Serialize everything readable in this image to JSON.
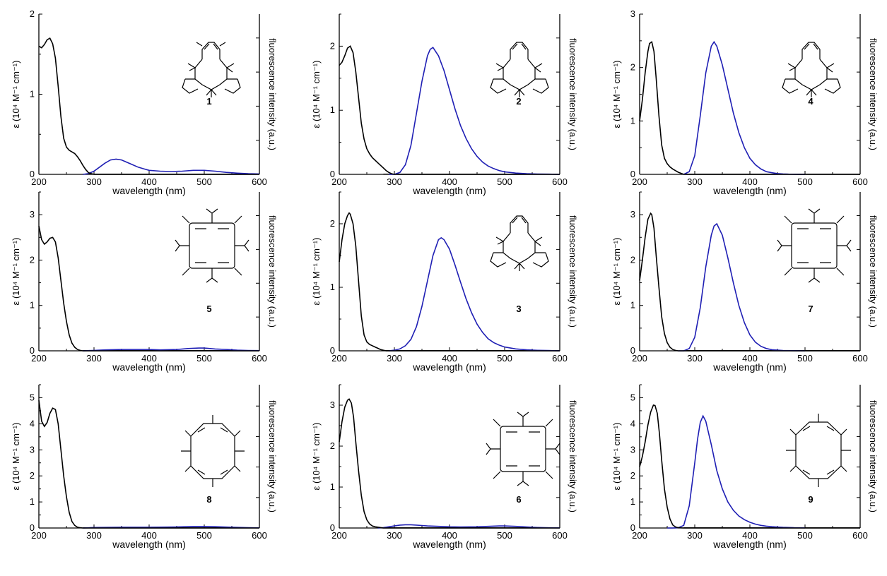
{
  "colors": {
    "absorption": "#000000",
    "fluorescence": "#1f1fb4"
  },
  "chart_data": [
    {
      "type": "line",
      "compound": "1",
      "xlabel": "wavelength (nm)",
      "ylabel": "ε (10⁴ M⁻¹ cm⁻¹)",
      "ylabel_right": "fluorescence intensity (a.u.)",
      "xlim": [
        200,
        600
      ],
      "ylim": [
        0,
        2
      ],
      "xticks": [
        200,
        300,
        400,
        500,
        600
      ],
      "yticks": [
        0,
        1,
        2
      ],
      "abs_x": [
        200,
        205,
        210,
        215,
        220,
        225,
        230,
        235,
        240,
        245,
        250,
        255,
        260,
        265,
        270,
        275,
        280,
        285,
        290,
        295,
        300,
        320,
        340,
        360,
        400,
        450,
        500,
        550,
        600
      ],
      "abs_y": [
        1.6,
        1.58,
        1.62,
        1.68,
        1.7,
        1.63,
        1.45,
        1.1,
        0.72,
        0.45,
        0.34,
        0.3,
        0.28,
        0.26,
        0.22,
        0.17,
        0.11,
        0.06,
        0.02,
        0.01,
        0.0,
        0.0,
        0.0,
        0.0,
        0.0,
        0.0,
        0.0,
        0.0,
        0.0
      ],
      "fl_x": [
        280,
        290,
        300,
        310,
        320,
        330,
        340,
        350,
        360,
        370,
        380,
        390,
        400,
        420,
        440,
        460,
        480,
        490,
        500,
        520,
        540,
        560,
        580,
        600
      ],
      "fl_y": [
        0.0,
        0.01,
        0.04,
        0.09,
        0.14,
        0.18,
        0.19,
        0.18,
        0.15,
        0.12,
        0.09,
        0.07,
        0.05,
        0.04,
        0.035,
        0.04,
        0.05,
        0.05,
        0.05,
        0.04,
        0.025,
        0.015,
        0.008,
        0.005
      ],
      "series": [
        {
          "name": "absorption"
        },
        {
          "name": "fluorescence"
        }
      ]
    },
    {
      "type": "line",
      "compound": "2",
      "xlabel": "wavelength (nm)",
      "ylabel": "ε (10⁴ M⁻¹ cm⁻¹)",
      "ylabel_right": "fluorescence intensity (a.u.)",
      "xlim": [
        200,
        600
      ],
      "ylim": [
        0,
        2.5
      ],
      "xticks": [
        200,
        300,
        400,
        500,
        600
      ],
      "yticks": [
        0,
        1,
        2
      ],
      "abs_x": [
        200,
        205,
        210,
        215,
        220,
        225,
        230,
        235,
        240,
        245,
        250,
        255,
        260,
        265,
        270,
        275,
        280,
        285,
        290,
        295,
        300,
        320,
        360,
        400,
        450,
        500,
        550,
        600
      ],
      "abs_y": [
        1.7,
        1.75,
        1.85,
        1.97,
        2.0,
        1.9,
        1.6,
        1.2,
        0.8,
        0.55,
        0.4,
        0.32,
        0.26,
        0.22,
        0.18,
        0.14,
        0.1,
        0.06,
        0.03,
        0.01,
        0.0,
        0.0,
        0.0,
        0.0,
        0.0,
        0.0,
        0.0,
        0.0
      ],
      "fl_x": [
        290,
        300,
        310,
        320,
        330,
        340,
        350,
        360,
        365,
        370,
        380,
        390,
        400,
        410,
        420,
        430,
        440,
        450,
        460,
        470,
        480,
        490,
        500,
        520,
        540,
        560,
        580,
        600
      ],
      "fl_y": [
        0.0,
        0.0,
        0.03,
        0.15,
        0.45,
        0.95,
        1.45,
        1.85,
        1.95,
        1.98,
        1.85,
        1.62,
        1.32,
        1.02,
        0.76,
        0.56,
        0.4,
        0.28,
        0.19,
        0.13,
        0.09,
        0.06,
        0.04,
        0.02,
        0.01,
        0.005,
        0.003,
        0.0
      ],
      "series": [
        {
          "name": "absorption"
        },
        {
          "name": "fluorescence"
        }
      ]
    },
    {
      "type": "line",
      "compound": "4",
      "xlabel": "wavelength (nm)",
      "ylabel": "ε (10⁴ M⁻¹ cm⁻¹)",
      "ylabel_right": "fluorescence intensity (a.u.)",
      "xlim": [
        200,
        600
      ],
      "ylim": [
        0,
        3
      ],
      "xticks": [
        200,
        300,
        400,
        500,
        600
      ],
      "yticks": [
        0,
        1,
        2,
        3
      ],
      "abs_x": [
        200,
        205,
        210,
        215,
        218,
        222,
        226,
        230,
        235,
        240,
        245,
        250,
        255,
        260,
        265,
        270,
        275,
        280,
        300,
        350,
        400,
        450,
        500,
        550,
        600
      ],
      "abs_y": [
        1.0,
        1.4,
        1.9,
        2.3,
        2.45,
        2.48,
        2.3,
        1.8,
        1.1,
        0.55,
        0.3,
        0.2,
        0.14,
        0.1,
        0.07,
        0.04,
        0.02,
        0.0,
        0.0,
        0.0,
        0.0,
        0.0,
        0.0,
        0.0,
        0.0
      ],
      "fl_x": [
        280,
        290,
        300,
        310,
        320,
        330,
        335,
        340,
        350,
        360,
        370,
        380,
        390,
        400,
        410,
        420,
        430,
        440,
        450,
        460,
        470,
        480,
        490,
        500
      ],
      "fl_y": [
        0.0,
        0.05,
        0.35,
        1.1,
        1.9,
        2.4,
        2.48,
        2.4,
        2.05,
        1.6,
        1.15,
        0.78,
        0.5,
        0.3,
        0.18,
        0.1,
        0.05,
        0.03,
        0.015,
        0.008,
        0.004,
        0.002,
        0.001,
        0.0
      ],
      "series": [
        {
          "name": "absorption"
        },
        {
          "name": "fluorescence"
        }
      ]
    },
    {
      "type": "line",
      "compound": "5",
      "xlabel": "wavelength (nm)",
      "ylabel": "ε (10⁴ M⁻¹ cm⁻¹)",
      "ylabel_right": "fluorescence intensity (a.u.)",
      "xlim": [
        200,
        600
      ],
      "ylim": [
        0,
        3.5
      ],
      "xticks": [
        200,
        300,
        400,
        500,
        600
      ],
      "yticks": [
        0,
        1,
        2,
        3
      ],
      "abs_x": [
        200,
        205,
        210,
        215,
        220,
        225,
        230,
        235,
        240,
        245,
        250,
        255,
        260,
        265,
        270,
        275,
        280,
        290,
        300,
        400,
        500,
        600
      ],
      "abs_y": [
        2.75,
        2.45,
        2.35,
        2.4,
        2.48,
        2.5,
        2.4,
        2.05,
        1.55,
        1.05,
        0.65,
        0.35,
        0.17,
        0.08,
        0.03,
        0.01,
        0.0,
        0.0,
        0.0,
        0.0,
        0.0,
        0.0
      ],
      "fl_x": [
        280,
        300,
        320,
        350,
        380,
        400,
        420,
        450,
        470,
        490,
        500,
        520,
        540,
        560,
        580,
        600
      ],
      "fl_y": [
        0.0,
        0.01,
        0.02,
        0.03,
        0.03,
        0.03,
        0.02,
        0.03,
        0.05,
        0.06,
        0.06,
        0.04,
        0.03,
        0.015,
        0.008,
        0.005
      ],
      "series": [
        {
          "name": "absorption"
        },
        {
          "name": "fluorescence"
        }
      ]
    },
    {
      "type": "line",
      "compound": "3",
      "xlabel": "wavelength (nm)",
      "ylabel": "ε (10⁴ M⁻¹ cm⁻¹)",
      "ylabel_right": "fluorescence intensity (a.u.)",
      "xlim": [
        200,
        600
      ],
      "ylim": [
        0,
        2.5
      ],
      "xticks": [
        200,
        300,
        400,
        500,
        600
      ],
      "yticks": [
        0,
        1,
        2
      ],
      "abs_x": [
        200,
        205,
        210,
        215,
        218,
        220,
        225,
        230,
        235,
        240,
        245,
        250,
        255,
        260,
        265,
        270,
        275,
        280,
        285,
        290,
        300,
        350,
        400,
        500,
        600
      ],
      "abs_y": [
        1.4,
        1.75,
        2.0,
        2.13,
        2.17,
        2.15,
        2.0,
        1.65,
        1.1,
        0.55,
        0.25,
        0.14,
        0.1,
        0.08,
        0.06,
        0.04,
        0.02,
        0.01,
        0.0,
        0.0,
        0.0,
        0.0,
        0.0,
        0.0,
        0.0
      ],
      "fl_x": [
        290,
        300,
        310,
        320,
        330,
        340,
        350,
        360,
        370,
        380,
        385,
        390,
        400,
        410,
        420,
        430,
        440,
        450,
        460,
        470,
        480,
        490,
        500,
        520,
        540,
        560,
        580,
        600
      ],
      "fl_y": [
        0.0,
        0.01,
        0.03,
        0.08,
        0.18,
        0.38,
        0.7,
        1.1,
        1.5,
        1.75,
        1.78,
        1.75,
        1.6,
        1.35,
        1.08,
        0.82,
        0.6,
        0.42,
        0.29,
        0.19,
        0.13,
        0.09,
        0.06,
        0.03,
        0.015,
        0.008,
        0.004,
        0.0
      ],
      "series": [
        {
          "name": "absorption"
        },
        {
          "name": "fluorescence"
        }
      ]
    },
    {
      "type": "line",
      "compound": "7",
      "xlabel": "wavelength (nm)",
      "ylabel": "ε (10⁴ M⁻¹ cm⁻¹)",
      "ylabel_right": "fluorescence intensity (a.u.)",
      "xlim": [
        200,
        600
      ],
      "ylim": [
        0,
        3.5
      ],
      "xticks": [
        200,
        300,
        400,
        500,
        600
      ],
      "yticks": [
        0,
        1,
        2,
        3
      ],
      "abs_x": [
        200,
        205,
        210,
        215,
        220,
        222,
        226,
        230,
        235,
        240,
        245,
        250,
        255,
        260,
        265,
        270,
        280,
        300,
        400,
        500,
        600
      ],
      "abs_y": [
        1.55,
        2.0,
        2.5,
        2.9,
        3.03,
        3.0,
        2.7,
        2.1,
        1.4,
        0.75,
        0.38,
        0.18,
        0.08,
        0.03,
        0.01,
        0.0,
        0.0,
        0.0,
        0.0,
        0.0,
        0.0
      ],
      "fl_x": [
        270,
        280,
        290,
        300,
        310,
        320,
        330,
        335,
        340,
        350,
        360,
        370,
        380,
        390,
        400,
        410,
        420,
        430,
        440,
        460,
        480,
        500
      ],
      "fl_y": [
        0.0,
        0.0,
        0.05,
        0.3,
        0.95,
        1.85,
        2.55,
        2.75,
        2.8,
        2.55,
        2.05,
        1.5,
        1.0,
        0.62,
        0.35,
        0.19,
        0.1,
        0.05,
        0.025,
        0.008,
        0.003,
        0.0
      ],
      "series": [
        {
          "name": "absorption"
        },
        {
          "name": "fluorescence"
        }
      ]
    },
    {
      "type": "line",
      "compound": "8",
      "xlabel": "wavelength (nm)",
      "ylabel": "ε (10⁴ M⁻¹ cm⁻¹)",
      "ylabel_right": "fluorescence intensity (a.u.)",
      "xlim": [
        200,
        600
      ],
      "ylim": [
        0,
        5.5
      ],
      "xticks": [
        200,
        300,
        400,
        500,
        600
      ],
      "yticks": [
        0,
        1,
        2,
        3,
        4,
        5
      ],
      "abs_x": [
        200,
        205,
        210,
        215,
        220,
        225,
        230,
        235,
        240,
        245,
        250,
        255,
        260,
        265,
        270,
        275,
        280,
        300,
        400,
        500,
        600
      ],
      "abs_y": [
        4.9,
        4.1,
        3.9,
        4.05,
        4.4,
        4.6,
        4.55,
        4.0,
        3.0,
        2.0,
        1.2,
        0.6,
        0.25,
        0.1,
        0.03,
        0.01,
        0.0,
        0.0,
        0.0,
        0.0,
        0.0
      ],
      "fl_x": [
        280,
        300,
        350,
        400,
        450,
        480,
        500,
        520,
        550,
        580,
        600
      ],
      "fl_y": [
        0.0,
        0.02,
        0.03,
        0.03,
        0.04,
        0.06,
        0.06,
        0.05,
        0.03,
        0.01,
        0.005
      ],
      "series": [
        {
          "name": "absorption"
        },
        {
          "name": "fluorescence"
        }
      ]
    },
    {
      "type": "line",
      "compound": "6",
      "xlabel": "wavelength (nm)",
      "ylabel": "ε (10⁴ M⁻¹ cm⁻¹)",
      "ylabel_right": "fluorescence intensity (a.u.)",
      "xlim": [
        200,
        600
      ],
      "ylim": [
        0,
        3.5
      ],
      "xticks": [
        200,
        300,
        400,
        500,
        600
      ],
      "yticks": [
        0,
        1,
        2,
        3
      ],
      "abs_x": [
        200,
        205,
        210,
        215,
        218,
        222,
        226,
        230,
        235,
        240,
        245,
        250,
        255,
        260,
        265,
        270,
        275,
        280,
        300,
        400,
        500,
        600
      ],
      "abs_y": [
        2.1,
        2.6,
        2.95,
        3.12,
        3.15,
        3.05,
        2.7,
        2.1,
        1.4,
        0.8,
        0.4,
        0.2,
        0.1,
        0.05,
        0.03,
        0.02,
        0.01,
        0.0,
        0.0,
        0.0,
        0.0,
        0.0
      ],
      "fl_x": [
        270,
        280,
        290,
        300,
        310,
        320,
        330,
        340,
        350,
        360,
        380,
        400,
        420,
        450,
        470,
        490,
        500,
        520,
        540,
        560,
        580,
        600
      ],
      "fl_y": [
        0.0,
        0.01,
        0.03,
        0.05,
        0.07,
        0.08,
        0.08,
        0.07,
        0.06,
        0.05,
        0.04,
        0.03,
        0.025,
        0.03,
        0.04,
        0.05,
        0.05,
        0.04,
        0.025,
        0.012,
        0.006,
        0.003
      ],
      "series": [
        {
          "name": "absorption"
        },
        {
          "name": "fluorescence"
        }
      ]
    },
    {
      "type": "line",
      "compound": "9",
      "xlabel": "wavelength (nm)",
      "ylabel": "ε (10⁴ M⁻¹ cm⁻¹)",
      "ylabel_right": "fluorescence intensity (a.u.)",
      "xlim": [
        200,
        600
      ],
      "ylim": [
        0,
        5.5
      ],
      "xticks": [
        200,
        300,
        400,
        500,
        600
      ],
      "yticks": [
        0,
        1,
        2,
        3,
        4,
        5
      ],
      "abs_x": [
        200,
        205,
        210,
        215,
        220,
        225,
        228,
        232,
        236,
        240,
        245,
        250,
        255,
        260,
        265,
        270,
        280,
        300,
        400,
        500,
        600
      ],
      "abs_y": [
        2.35,
        2.75,
        3.3,
        3.95,
        4.45,
        4.72,
        4.7,
        4.4,
        3.6,
        2.6,
        1.5,
        0.8,
        0.35,
        0.12,
        0.04,
        0.01,
        0.0,
        0.0,
        0.0,
        0.0,
        0.0
      ],
      "fl_x": [
        250,
        260,
        270,
        280,
        290,
        300,
        305,
        310,
        315,
        320,
        330,
        340,
        350,
        360,
        370,
        380,
        390,
        400,
        410,
        420,
        430,
        440,
        450,
        460,
        470,
        480,
        490,
        500
      ],
      "fl_y": [
        0.0,
        0.0,
        0.01,
        0.1,
        0.85,
        2.5,
        3.4,
        4.05,
        4.3,
        4.1,
        3.2,
        2.2,
        1.5,
        1.0,
        0.68,
        0.46,
        0.32,
        0.22,
        0.15,
        0.1,
        0.07,
        0.05,
        0.035,
        0.025,
        0.018,
        0.012,
        0.008,
        0.005
      ],
      "series": [
        {
          "name": "absorption"
        },
        {
          "name": "fluorescence"
        }
      ]
    }
  ]
}
